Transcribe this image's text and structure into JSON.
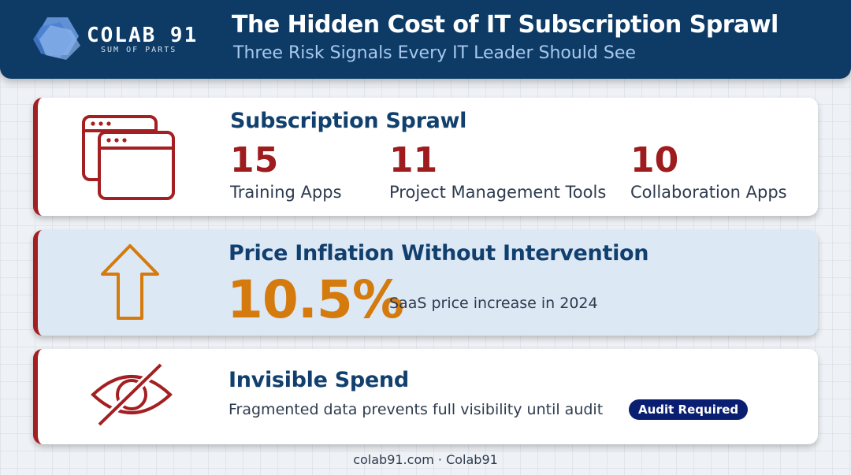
{
  "header": {
    "brand_name": "COLAB 91",
    "brand_tagline": "SUM OF PARTS",
    "title": "The Hidden Cost of IT Subscription Sprawl",
    "subtitle": "Three Risk Signals Every IT Leader Should See"
  },
  "cards": [
    {
      "title": "Subscription Sprawl",
      "icon": "browser-windows-icon",
      "stats": [
        {
          "value": "15",
          "label": "Training Apps"
        },
        {
          "value": "11",
          "label": "Project Management Tools"
        },
        {
          "value": "10",
          "label": "Collaboration Apps"
        }
      ]
    },
    {
      "title": "Price Inflation Without Intervention",
      "icon": "arrow-up-icon",
      "value": "10.5%",
      "label": "SaaS price increase in 2024"
    },
    {
      "title": "Invisible Spend",
      "icon": "eye-slash-icon",
      "text": "Fragmented data prevents full visibility until audit",
      "badge": "Audit Required"
    }
  ],
  "footer": "colab91.com · Colab91",
  "colors": {
    "header_bg": "#0d3b66",
    "accent_red": "#a31f22",
    "accent_orange": "#d57a0d",
    "title_blue": "#12406e",
    "badge_navy": "#0b1f72"
  }
}
